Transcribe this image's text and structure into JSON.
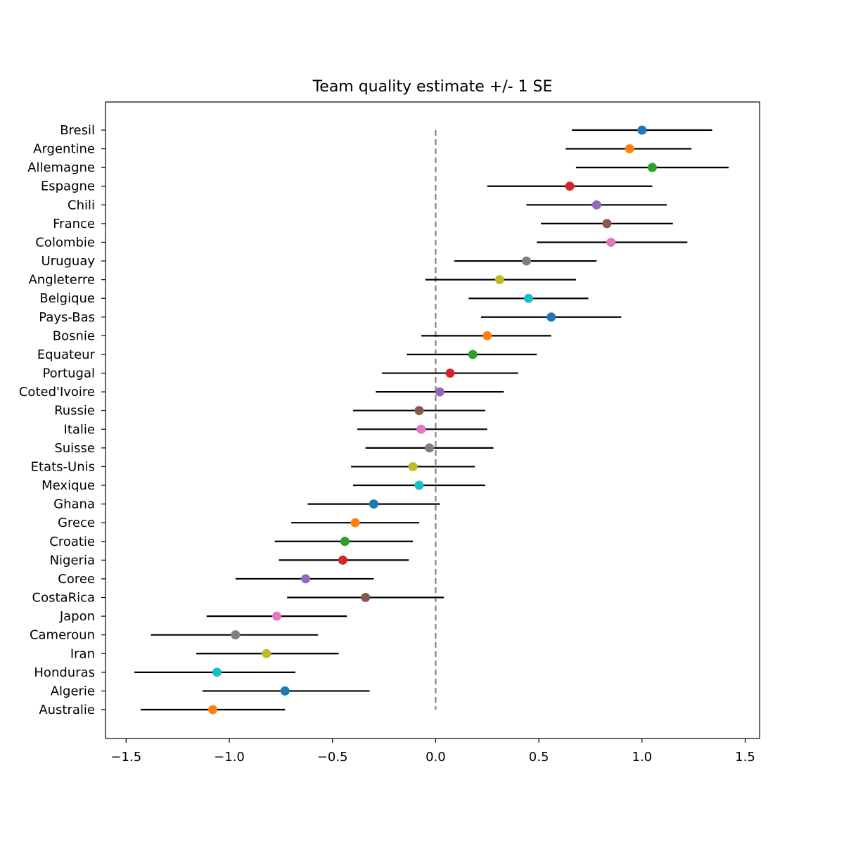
{
  "chart_data": {
    "type": "scatter",
    "title": "Team quality estimate +/- 1 SE",
    "xlabel": "",
    "ylabel": "",
    "xlim": [
      -1.6,
      1.57
    ],
    "xticks": [
      -1.5,
      -1.0,
      -0.5,
      0.0,
      0.5,
      1.0,
      1.5
    ],
    "xtick_labels": [
      "−1.5",
      "−1.0",
      "−0.5",
      "0.0",
      "0.5",
      "1.0",
      "1.5"
    ],
    "reference_line": {
      "x": 0.0,
      "style": "dashed",
      "color": "#808080"
    },
    "grid": false,
    "legend": "none",
    "error_bar_color": "#000000",
    "teams": [
      {
        "name": "Bresil",
        "estimate": 1.0,
        "low": 0.66,
        "high": 1.34,
        "color": "#1f77b4"
      },
      {
        "name": "Argentine",
        "estimate": 0.94,
        "low": 0.63,
        "high": 1.24,
        "color": "#ff7f0e"
      },
      {
        "name": "Allemagne",
        "estimate": 1.05,
        "low": 0.68,
        "high": 1.42,
        "color": "#2ca02c"
      },
      {
        "name": "Espagne",
        "estimate": 0.65,
        "low": 0.25,
        "high": 1.05,
        "color": "#d62728"
      },
      {
        "name": "Chili",
        "estimate": 0.78,
        "low": 0.44,
        "high": 1.12,
        "color": "#9467bd"
      },
      {
        "name": "France",
        "estimate": 0.83,
        "low": 0.51,
        "high": 1.15,
        "color": "#8c564b"
      },
      {
        "name": "Colombie",
        "estimate": 0.85,
        "low": 0.49,
        "high": 1.22,
        "color": "#e377c2"
      },
      {
        "name": "Uruguay",
        "estimate": 0.44,
        "low": 0.09,
        "high": 0.78,
        "color": "#7f7f7f"
      },
      {
        "name": "Angleterre",
        "estimate": 0.31,
        "low": -0.05,
        "high": 0.68,
        "color": "#bcbd22"
      },
      {
        "name": "Belgique",
        "estimate": 0.45,
        "low": 0.16,
        "high": 0.74,
        "color": "#17becf"
      },
      {
        "name": "Pays-Bas",
        "estimate": 0.56,
        "low": 0.22,
        "high": 0.9,
        "color": "#1f77b4"
      },
      {
        "name": "Bosnie",
        "estimate": 0.25,
        "low": -0.07,
        "high": 0.56,
        "color": "#ff7f0e"
      },
      {
        "name": "Equateur",
        "estimate": 0.18,
        "low": -0.14,
        "high": 0.49,
        "color": "#2ca02c"
      },
      {
        "name": "Portugal",
        "estimate": 0.07,
        "low": -0.26,
        "high": 0.4,
        "color": "#d62728"
      },
      {
        "name": "Coted'Ivoire",
        "estimate": 0.02,
        "low": -0.29,
        "high": 0.33,
        "color": "#9467bd"
      },
      {
        "name": "Russie",
        "estimate": -0.08,
        "low": -0.4,
        "high": 0.24,
        "color": "#8c564b"
      },
      {
        "name": "Italie",
        "estimate": -0.07,
        "low": -0.38,
        "high": 0.25,
        "color": "#e377c2"
      },
      {
        "name": "Suisse",
        "estimate": -0.03,
        "low": -0.34,
        "high": 0.28,
        "color": "#7f7f7f"
      },
      {
        "name": "Etats-Unis",
        "estimate": -0.11,
        "low": -0.41,
        "high": 0.19,
        "color": "#bcbd22"
      },
      {
        "name": "Mexique",
        "estimate": -0.08,
        "low": -0.4,
        "high": 0.24,
        "color": "#17becf"
      },
      {
        "name": "Ghana",
        "estimate": -0.3,
        "low": -0.62,
        "high": 0.02,
        "color": "#1f77b4"
      },
      {
        "name": "Grece",
        "estimate": -0.39,
        "low": -0.7,
        "high": -0.08,
        "color": "#ff7f0e"
      },
      {
        "name": "Croatie",
        "estimate": -0.44,
        "low": -0.78,
        "high": -0.11,
        "color": "#2ca02c"
      },
      {
        "name": "Nigeria",
        "estimate": -0.45,
        "low": -0.76,
        "high": -0.13,
        "color": "#d62728"
      },
      {
        "name": "Coree",
        "estimate": -0.63,
        "low": -0.97,
        "high": -0.3,
        "color": "#9467bd"
      },
      {
        "name": "CostaRica",
        "estimate": -0.34,
        "low": -0.72,
        "high": 0.04,
        "color": "#8c564b"
      },
      {
        "name": "Japon",
        "estimate": -0.77,
        "low": -1.11,
        "high": -0.43,
        "color": "#e377c2"
      },
      {
        "name": "Cameroun",
        "estimate": -0.97,
        "low": -1.38,
        "high": -0.57,
        "color": "#7f7f7f"
      },
      {
        "name": "Iran",
        "estimate": -0.82,
        "low": -1.16,
        "high": -0.47,
        "color": "#bcbd22"
      },
      {
        "name": "Honduras",
        "estimate": -1.06,
        "low": -1.46,
        "high": -0.68,
        "color": "#17becf"
      },
      {
        "name": "Algerie",
        "estimate": -0.73,
        "low": -1.13,
        "high": -0.32,
        "color": "#1f77b4"
      },
      {
        "name": "Australie",
        "estimate": -1.08,
        "low": -1.43,
        "high": -0.73,
        "color": "#ff7f0e"
      }
    ]
  }
}
